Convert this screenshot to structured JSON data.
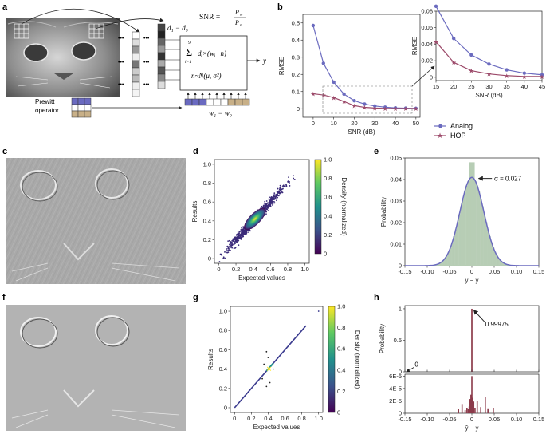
{
  "panels": {
    "a": "a",
    "b": "b",
    "c": "c",
    "d": "d",
    "e": "e",
    "f": "f",
    "g": "g",
    "h": "h"
  },
  "panel_a": {
    "channel_range": "d₁ − d₉",
    "snr_lhs": "SNR =",
    "snr_num": "P",
    "snr_num_sub": "w",
    "snr_den": "P",
    "snr_den_sub": "n",
    "sum_sup": "9",
    "sum_sub": "i=1",
    "sum_expr": "dᵢ×(wᵢ+n)",
    "noise_expr": "n~N(μ, σ²)",
    "output": "y",
    "prewitt_line1": "Prewitt",
    "prewitt_line2": "operator",
    "weight_range": "w₁ − w₉",
    "dots": "•••"
  },
  "colors": {
    "analog": "#6b6bbf",
    "hop": "#9c4a6a",
    "fill_e": "#b7cdb5",
    "bar_h": "#8b3a4a"
  },
  "chart_data": [
    {
      "id": "b-main",
      "type": "line",
      "xlabel": "SNR (dB)",
      "ylabel": "RMSE",
      "xlim": [
        -5,
        52
      ],
      "ylim": [
        -0.05,
        0.55
      ],
      "xticks": [
        0,
        10,
        20,
        30,
        40,
        50
      ],
      "yticks": [
        0,
        0.1,
        0.2,
        0.3,
        0.4,
        0.5
      ],
      "ytick_labels": [
        "0",
        "0.1",
        "0.2",
        "0.3",
        "0.4",
        "0.5"
      ],
      "series": [
        {
          "name": "Analog",
          "x": [
            0,
            5,
            10,
            15,
            20,
            25,
            30,
            35,
            40,
            45,
            50
          ],
          "y": [
            0.485,
            0.265,
            0.155,
            0.085,
            0.047,
            0.027,
            0.016,
            0.009,
            0.005,
            0.003,
            0.002
          ]
        },
        {
          "name": "HOP",
          "x": [
            0,
            5,
            10,
            15,
            20,
            25,
            30,
            35,
            40,
            45,
            50
          ],
          "y": [
            0.087,
            0.08,
            0.065,
            0.042,
            0.018,
            0.008,
            0.004,
            0.002,
            0.001,
            0.001,
            0.001
          ]
        }
      ]
    },
    {
      "id": "b-inset",
      "type": "line",
      "xlabel": "SNR (dB)",
      "ylabel": "RMSE",
      "xlim": [
        15,
        45
      ],
      "ylim": [
        -0.004,
        0.08
      ],
      "xticks": [
        15,
        20,
        25,
        30,
        35,
        40,
        45
      ],
      "yticks": [
        0,
        0.02,
        0.04,
        0.06,
        0.08
      ],
      "ytick_labels": [
        "0",
        "0.02",
        "0.04",
        "0.06",
        "0.08"
      ],
      "series": [
        {
          "name": "Analog",
          "x": [
            15,
            20,
            25,
            30,
            35,
            40,
            45
          ],
          "y": [
            0.086,
            0.047,
            0.027,
            0.016,
            0.009,
            0.005,
            0.003
          ]
        },
        {
          "name": "HOP",
          "x": [
            15,
            20,
            25,
            30,
            35,
            40,
            45
          ],
          "y": [
            0.043,
            0.018,
            0.008,
            0.004,
            0.002,
            0.001,
            0.001
          ]
        }
      ]
    },
    {
      "id": "d",
      "type": "scatter",
      "xlabel": "Expected values",
      "ylabel": "Results",
      "colorbar_label": "Density (normalized)",
      "xlim": [
        -0.05,
        1.05
      ],
      "ylim": [
        -0.05,
        1.05
      ],
      "xticks": [
        0,
        0.2,
        0.4,
        0.6,
        0.8,
        1.0
      ],
      "xtick_labels": [
        "0",
        "0.2",
        "0.4",
        "0.6",
        "0.8",
        "1.0"
      ],
      "yticks": [
        0,
        0.2,
        0.4,
        0.6,
        0.8,
        1.0
      ],
      "ytick_labels": [
        "0",
        "0.2",
        "0.4",
        "0.6",
        "0.8",
        "1.0"
      ],
      "colorbar_ticks": [
        "0",
        "0.2",
        "0.4",
        "0.6",
        "0.8",
        "1.0"
      ],
      "center": [
        0.42,
        0.42
      ],
      "spread": 0.027
    },
    {
      "id": "e",
      "type": "bar",
      "xlabel": "ŷ − y",
      "ylabel": "Probability",
      "xlim": [
        -0.15,
        0.15
      ],
      "ylim": [
        0,
        0.05
      ],
      "xticks": [
        -0.15,
        -0.1,
        -0.05,
        0,
        0.05,
        0.1,
        0.15
      ],
      "xtick_labels": [
        "-0.15",
        "-0.10",
        "-0.05",
        "0",
        "0.05",
        "0.10",
        "0.15"
      ],
      "yticks": [
        0,
        0.01,
        0.02,
        0.03,
        0.04,
        0.05
      ],
      "ytick_labels": [
        "0",
        "0.01",
        "0.02",
        "0.03",
        "0.04",
        "0.05"
      ],
      "sigma": 0.027,
      "peak": 0.041,
      "annotation": "σ = 0.027"
    },
    {
      "id": "g",
      "type": "scatter",
      "xlabel": "Expected values",
      "ylabel": "Results",
      "colorbar_label": "Density (normalized)",
      "xlim": [
        -0.05,
        1.05
      ],
      "ylim": [
        -0.05,
        1.05
      ],
      "xticks": [
        0,
        0.2,
        0.4,
        0.6,
        0.8,
        1.0
      ],
      "xtick_labels": [
        "0",
        "0.2",
        "0.4",
        "0.6",
        "0.8",
        "1.0"
      ],
      "yticks": [
        0,
        0.2,
        0.4,
        0.6,
        0.8,
        1.0
      ],
      "ytick_labels": [
        "0",
        "0.2",
        "0.4",
        "0.6",
        "0.8",
        "1.0"
      ],
      "colorbar_ticks": [
        "0",
        "0.2",
        "0.4",
        "0.6",
        "0.8",
        "1.0"
      ],
      "outliers": [
        [
          0.38,
          0.58
        ],
        [
          0.4,
          0.52
        ],
        [
          0.35,
          0.45
        ],
        [
          0.46,
          0.4
        ],
        [
          0.42,
          0.26
        ],
        [
          0.38,
          0.22
        ],
        [
          0.33,
          0.3
        ]
      ]
    },
    {
      "id": "h",
      "type": "bar",
      "xlabel": "ŷ − y",
      "ylabel": "Probability",
      "xlim": [
        -0.15,
        0.15
      ],
      "xticks": [
        -0.15,
        -0.1,
        -0.05,
        0,
        0.05,
        0.1,
        0.15
      ],
      "xtick_labels": [
        "-0.15",
        "-0.10",
        "-0.05",
        "0",
        "0.05",
        "0.10",
        "0.15"
      ],
      "top_ytick_labels": [
        "0",
        "0.5",
        "1"
      ],
      "bottom_ytick_labels": [
        "0",
        "2E-5",
        "4E-5",
        "6E-5"
      ],
      "peak_value": 0.99975,
      "peak_label": "0.99975",
      "zero_label": "0",
      "small_bars": [
        {
          "x": -0.03,
          "v": 7e-06
        },
        {
          "x": -0.022,
          "v": 1.5e-05
        },
        {
          "x": -0.015,
          "v": 5e-06
        },
        {
          "x": -0.011,
          "v": 9e-06
        },
        {
          "x": -0.008,
          "v": 7e-06
        },
        {
          "x": -0.006,
          "v": 1.1e-05
        },
        {
          "x": -0.004,
          "v": 2.3e-05
        },
        {
          "x": -0.002,
          "v": 3e-05
        },
        {
          "x": 0.0,
          "v": 6e-05
        },
        {
          "x": 0.002,
          "v": 2.5e-05
        },
        {
          "x": 0.004,
          "v": 1.9e-05
        },
        {
          "x": 0.007,
          "v": 9e-06
        },
        {
          "x": 0.012,
          "v": 2e-05
        },
        {
          "x": 0.02,
          "v": 1e-05
        },
        {
          "x": 0.03,
          "v": 2.7e-05
        },
        {
          "x": 0.036,
          "v": 8e-06
        },
        {
          "x": 0.048,
          "v": 9e-06
        }
      ]
    }
  ]
}
